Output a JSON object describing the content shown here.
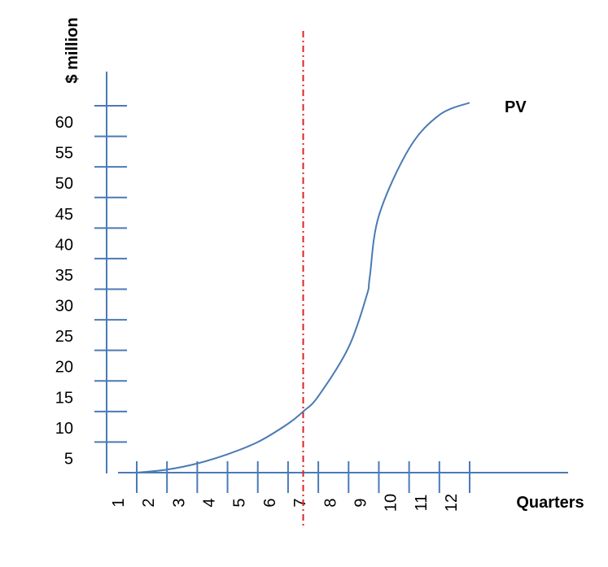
{
  "chart_data": {
    "type": "line",
    "ylabel": "$ million",
    "xlabel": "Quarters",
    "series_label": "PV",
    "y_tick_labels": [
      "5",
      "10",
      "15",
      "20",
      "25",
      "30",
      "35",
      "40",
      "45",
      "50",
      "55",
      "60"
    ],
    "x_tick_labels": [
      "1",
      "2",
      "3",
      "4",
      "5",
      "6",
      "7",
      "8",
      "9",
      "10",
      "11",
      "12"
    ],
    "series": [
      {
        "name": "PV",
        "x": [
          1,
          2,
          3,
          4,
          5,
          6,
          6.5,
          7,
          8,
          8.6,
          8.7,
          9,
          10,
          11,
          12
        ],
        "y": [
          0,
          0.5,
          1.5,
          3,
          5,
          8,
          10,
          12.5,
          20.5,
          29,
          32,
          42,
          53,
          58.5,
          60.5
        ]
      }
    ],
    "reference_line": {
      "orientation": "vertical",
      "x": 6.5,
      "style": "dash-dot",
      "color": "#e02020"
    },
    "ylim": [
      0,
      65
    ],
    "grid": false,
    "line_color": "#4a7ab5",
    "axis_color": "#4a7ab5"
  }
}
